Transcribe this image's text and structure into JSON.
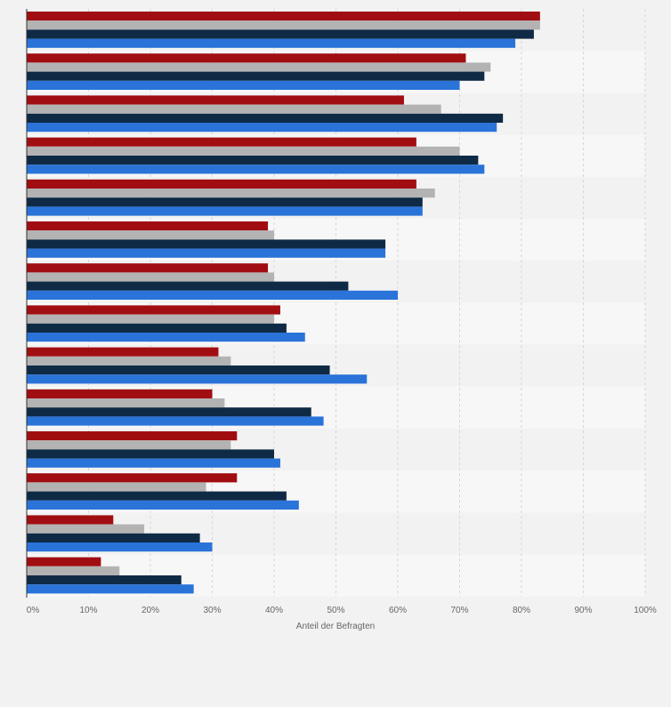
{
  "chart_data": {
    "type": "bar",
    "orientation": "horizontal",
    "categories": [
      "",
      "",
      "",
      "",
      "",
      "",
      "",
      "",
      "",
      "",
      "",
      "",
      "",
      ""
    ],
    "series": [
      {
        "color": "#a10e12",
        "values": [
          83,
          71,
          61,
          63,
          63,
          39,
          39,
          41,
          31,
          30,
          34,
          34,
          14,
          12
        ]
      },
      {
        "color": "#b3b3b3",
        "values": [
          83,
          75,
          67,
          70,
          66,
          40,
          40,
          40,
          33,
          32,
          33,
          29,
          19,
          15
        ]
      },
      {
        "color": "#0f2a45",
        "values": [
          82,
          74,
          77,
          73,
          64,
          58,
          52,
          42,
          49,
          46,
          40,
          42,
          28,
          25
        ]
      },
      {
        "color": "#2a73d9",
        "values": [
          79,
          70,
          76,
          74,
          64,
          58,
          60,
          45,
          55,
          48,
          41,
          44,
          30,
          27
        ]
      }
    ],
    "xlim": [
      0,
      100
    ],
    "xticks": [
      "0%",
      "10%",
      "20%",
      "30%",
      "40%",
      "50%",
      "60%",
      "70%",
      "80%",
      "90%",
      "100%"
    ],
    "xlabel": "Anteil der Befragten",
    "grid": true
  }
}
